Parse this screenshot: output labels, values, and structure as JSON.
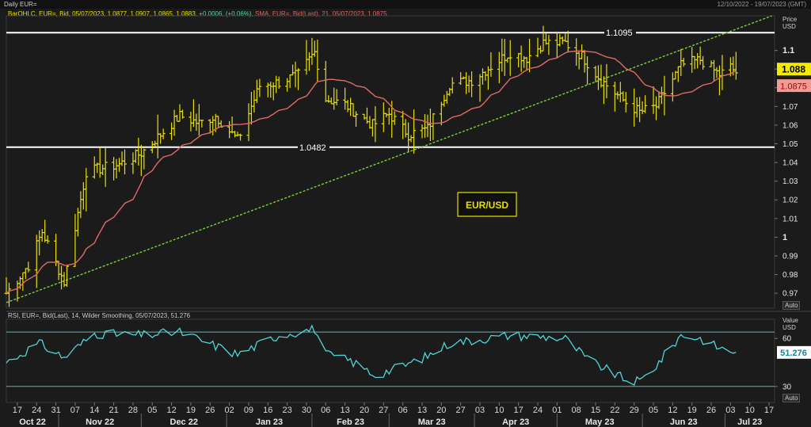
{
  "window": {
    "title": "Daily EUR=",
    "date_range": "12/10/2022 - 19/07/2023 (GMT)"
  },
  "legend": {
    "ohlc_text": "BarOHLC, EUR=, Bid, 05/07/2023, 1.0877, 1.0907, 1.0865, 1.0883,",
    "ohlc_change": "+0.0006, (+0.06%),",
    "sma_text": "SMA, EUR=, Bid(Last), 21, 05/07/2023, 1.0875",
    "rsi_text": "RSI, EUR=, Bid(Last), 14, Wilder Smoothing, 05/07/2023, 51.276"
  },
  "axis_headers": {
    "price": [
      "Price",
      "USD"
    ],
    "value": [
      "Value",
      "USD"
    ],
    "auto": "Auto"
  },
  "colors": {
    "background": "#1b1b1b",
    "bars": "#e8e000",
    "sma": "#e06a66",
    "trendline": "#7ccf3a",
    "hlines": "#ffffff",
    "rsi": "#4fd6d6",
    "rsi_bands": "#5fb7b7",
    "last_price_bg": "#f6ea00",
    "sma_bg": "#f29a94"
  },
  "chart_data": [
    {
      "type": "ohlc",
      "title": "EUR/USD",
      "price_range": [
        0.962,
        1.1185
      ],
      "y_ticks": [
        "1.1",
        "1.09",
        "1.08",
        "1.07",
        "1.06",
        "1.05",
        "1.04",
        "1.03",
        "1.02",
        "1.01",
        "1",
        "0.99",
        "0.98",
        "0.97"
      ],
      "y_tick_values": [
        1.1,
        1.09,
        1.08,
        1.07,
        1.06,
        1.05,
        1.04,
        1.03,
        1.02,
        1.01,
        1.0,
        0.99,
        0.98,
        0.97
      ],
      "last_price": {
        "label": "1.088",
        "value": 1.0883
      },
      "sma_last": {
        "label": "1.0875",
        "value": 1.0875
      },
      "horizontal_lines": [
        {
          "label": "1.1095",
          "value": 1.1095
        },
        {
          "label": "1.0482",
          "value": 1.0482
        }
      ],
      "trendline": {
        "from": {
          "date": "2022-10-13",
          "value": 0.965
        },
        "to": {
          "date": "2023-07-18",
          "value": 1.1185
        }
      },
      "x_range": [
        "2022-10-13",
        "2023-07-19"
      ],
      "x_day_ticks": [
        "17",
        "24",
        "31",
        "07",
        "14",
        "21",
        "28",
        "05",
        "12",
        "19",
        "26",
        "02",
        "09",
        "16",
        "23",
        "30",
        "06",
        "13",
        "20",
        "27",
        "06",
        "13",
        "20",
        "27",
        "03",
        "10",
        "17",
        "24",
        "01",
        "08",
        "15",
        "22",
        "29",
        "05",
        "12",
        "19",
        "26",
        "03",
        "10",
        "17"
      ],
      "x_months": [
        "Oct 22",
        "Nov 22",
        "Dec 22",
        "Jan 23",
        "Feb 23",
        "Mar 23",
        "Apr 23",
        "May 23",
        "Jun 23",
        "Jul 23"
      ],
      "close_anchors": [
        [
          "2022-10-13",
          0.97
        ],
        [
          "2022-10-21",
          0.985
        ],
        [
          "2022-10-26",
          1.003
        ],
        [
          "2022-11-03",
          0.976
        ],
        [
          "2022-11-11",
          1.035
        ],
        [
          "2022-11-17",
          1.037
        ],
        [
          "2022-11-23",
          1.039
        ],
        [
          "2022-12-01",
          1.045
        ],
        [
          "2022-12-08",
          1.055
        ],
        [
          "2022-12-15",
          1.065
        ],
        [
          "2022-12-22",
          1.061
        ],
        [
          "2022-12-28",
          1.065
        ],
        [
          "2023-01-05",
          1.052
        ],
        [
          "2023-01-13",
          1.081
        ],
        [
          "2023-01-20",
          1.083
        ],
        [
          "2023-01-27",
          1.087
        ],
        [
          "2023-02-02",
          1.099
        ],
        [
          "2023-02-06",
          1.074
        ],
        [
          "2023-02-13",
          1.071
        ],
        [
          "2023-02-23",
          1.06
        ],
        [
          "2023-03-01",
          1.066
        ],
        [
          "2023-03-08",
          1.055
        ],
        [
          "2023-03-15",
          1.058
        ],
        [
          "2023-03-23",
          1.082
        ],
        [
          "2023-03-31",
          1.084
        ],
        [
          "2023-04-14",
          1.099
        ],
        [
          "2023-04-20",
          1.096
        ],
        [
          "2023-04-26",
          1.104
        ],
        [
          "2023-05-04",
          1.104
        ],
        [
          "2023-05-10",
          1.097
        ],
        [
          "2023-05-17",
          1.084
        ],
        [
          "2023-05-26",
          1.072
        ],
        [
          "2023-05-31",
          1.067
        ],
        [
          "2023-06-06",
          1.07
        ],
        [
          "2023-06-15",
          1.092
        ],
        [
          "2023-06-22",
          1.095
        ],
        [
          "2023-06-29",
          1.087
        ],
        [
          "2023-07-03",
          1.091
        ],
        [
          "2023-07-05",
          1.0883
        ]
      ]
    },
    {
      "type": "line",
      "title": "RSI",
      "value_range": [
        20,
        72
      ],
      "y_ticks": [
        "60",
        "30"
      ],
      "y_tick_values": [
        60,
        30
      ],
      "bands": [
        64,
        30
      ],
      "last_value": {
        "label": "51.276",
        "value": 51.276
      },
      "anchors": [
        [
          "2022-10-13",
          45
        ],
        [
          "2022-10-25",
          57
        ],
        [
          "2022-11-03",
          48
        ],
        [
          "2022-11-14",
          63
        ],
        [
          "2022-12-01",
          62
        ],
        [
          "2022-12-15",
          64
        ],
        [
          "2023-01-05",
          50
        ],
        [
          "2023-01-20",
          62
        ],
        [
          "2023-02-02",
          66
        ],
        [
          "2023-02-06",
          50
        ],
        [
          "2023-02-15",
          46
        ],
        [
          "2023-02-24",
          37
        ],
        [
          "2023-03-08",
          44
        ],
        [
          "2023-03-15",
          49
        ],
        [
          "2023-03-23",
          57
        ],
        [
          "2023-04-14",
          62
        ],
        [
          "2023-04-26",
          61
        ],
        [
          "2023-05-04",
          60
        ],
        [
          "2023-05-12",
          47
        ],
        [
          "2023-05-26",
          34
        ],
        [
          "2023-05-31",
          33
        ],
        [
          "2023-06-06",
          43
        ],
        [
          "2023-06-15",
          62
        ],
        [
          "2023-06-22",
          60
        ],
        [
          "2023-06-29",
          54
        ],
        [
          "2023-07-05",
          51.276
        ]
      ]
    }
  ]
}
